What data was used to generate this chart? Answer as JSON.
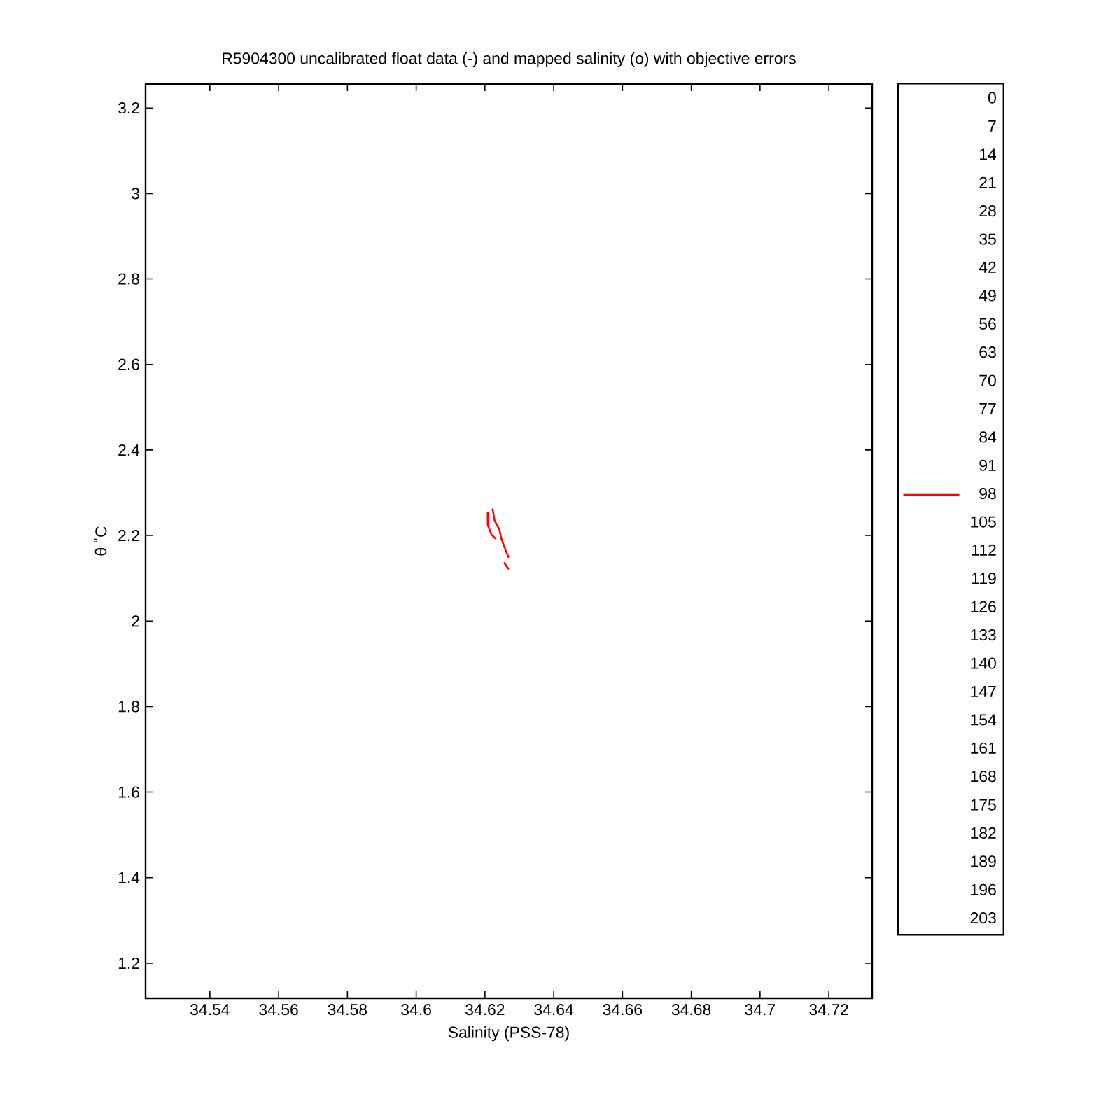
{
  "chart_data": {
    "type": "line",
    "title": "R5904300 uncalibrated float data (-) and mapped salinity (o) with objective errors",
    "xlabel": "Salinity (PSS-78)",
    "ylabel": "θ ˚C",
    "xlim": [
      34.5213,
      34.7326
    ],
    "ylim": [
      1.118,
      3.256
    ],
    "xticks": [
      34.54,
      34.56,
      34.58,
      34.6,
      34.62,
      34.64,
      34.66,
      34.68,
      34.7,
      34.72
    ],
    "yticks": [
      1.2,
      1.4,
      1.6,
      1.8,
      2,
      2.2,
      2.4,
      2.6,
      2.8,
      3,
      3.2
    ],
    "legend": "right",
    "line_style": "solid",
    "series": [
      {
        "name": "0"
      },
      {
        "name": "7"
      },
      {
        "name": "14"
      },
      {
        "name": "21"
      },
      {
        "name": "28"
      },
      {
        "name": "35"
      },
      {
        "name": "42"
      },
      {
        "name": "49"
      },
      {
        "name": "56"
      },
      {
        "name": "63"
      },
      {
        "name": "70"
      },
      {
        "name": "77"
      },
      {
        "name": "84"
      },
      {
        "name": "91"
      },
      {
        "name": "98",
        "color": "#ff0000",
        "x": [
          34.6208,
          34.6208,
          34.6219,
          34.6232,
          null,
          34.6222,
          34.6228,
          34.6242,
          34.6248,
          34.6258,
          34.6269,
          null,
          34.6255,
          34.6269
        ],
        "values": [
          2.254,
          2.225,
          2.202,
          2.192,
          null,
          2.263,
          2.235,
          2.214,
          2.192,
          2.17,
          2.148,
          null,
          2.137,
          2.121
        ]
      },
      {
        "name": "105"
      },
      {
        "name": "112"
      },
      {
        "name": "119"
      },
      {
        "name": "126"
      },
      {
        "name": "133"
      },
      {
        "name": "140"
      },
      {
        "name": "147"
      },
      {
        "name": "154"
      },
      {
        "name": "161"
      },
      {
        "name": "168"
      },
      {
        "name": "175"
      },
      {
        "name": "182"
      },
      {
        "name": "189"
      },
      {
        "name": "196"
      },
      {
        "name": "203"
      }
    ]
  }
}
